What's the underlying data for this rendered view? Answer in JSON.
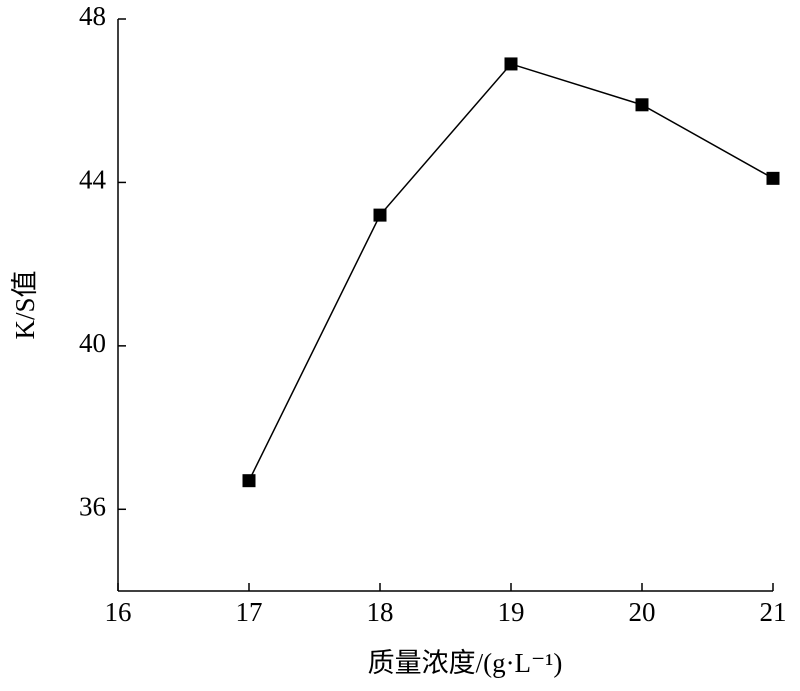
{
  "chart_data": {
    "type": "line",
    "x_label": "质量浓度/(g·L⁻¹)",
    "y_label": "K/S值",
    "x": [
      17,
      18,
      19,
      20,
      21
    ],
    "series": [
      {
        "name": "K/S",
        "color": "#000000",
        "values": [
          36.7,
          43.2,
          46.9,
          45.9,
          44.1
        ]
      }
    ],
    "xlim": [
      16,
      21
    ],
    "xticks": [
      16,
      17,
      18,
      19,
      20,
      21
    ],
    "ylim": [
      34,
      48
    ],
    "yticks": [
      36,
      40,
      44,
      48
    ],
    "grid": false,
    "marker": "square"
  }
}
